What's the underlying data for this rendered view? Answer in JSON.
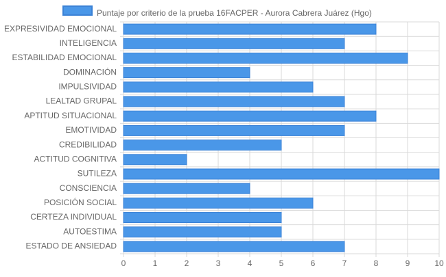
{
  "chart_data": {
    "type": "bar",
    "orientation": "horizontal",
    "categories": [
      "EXPRESIVIDAD EMOCIONAL",
      "INTELIGENCIA",
      "ESTABILIDAD EMOCIONAL",
      "DOMINACIÓN",
      "IMPULSIVIDAD",
      "LEALTAD GRUPAL",
      "APTITUD SITUACIONAL",
      "EMOTIVIDAD",
      "CREDIBILIDAD",
      "ACTITUD COGNITIVA",
      "SUTILEZA",
      "CONSCIENCIA",
      "POSICIÓN SOCIAL",
      "CERTEZA INDIVIDUAL",
      "AUTOESTIMA",
      "ESTADO DE ANSIEDAD"
    ],
    "series": [
      {
        "name": "Puntaje por criterio de la prueba 16FACPER - Aurora Cabrera Juárez  (Hgo)",
        "values": [
          8,
          7,
          9,
          4,
          6,
          7,
          8,
          7,
          5,
          2,
          10,
          4,
          6,
          5,
          5,
          7
        ],
        "color": "#4a97e8",
        "border_color": "#3b82d6"
      }
    ],
    "xlim": [
      0,
      10
    ],
    "x_ticks": [
      "0",
      "1",
      "2",
      "3",
      "4",
      "5",
      "6",
      "7",
      "8",
      "9",
      "10"
    ],
    "grid": true,
    "legend_position": "top-center",
    "title": "",
    "xlabel": "",
    "ylabel": ""
  },
  "colors": {
    "grid": "#d9d9d9",
    "axis_text": "#666666",
    "legend_text": "#666666"
  }
}
